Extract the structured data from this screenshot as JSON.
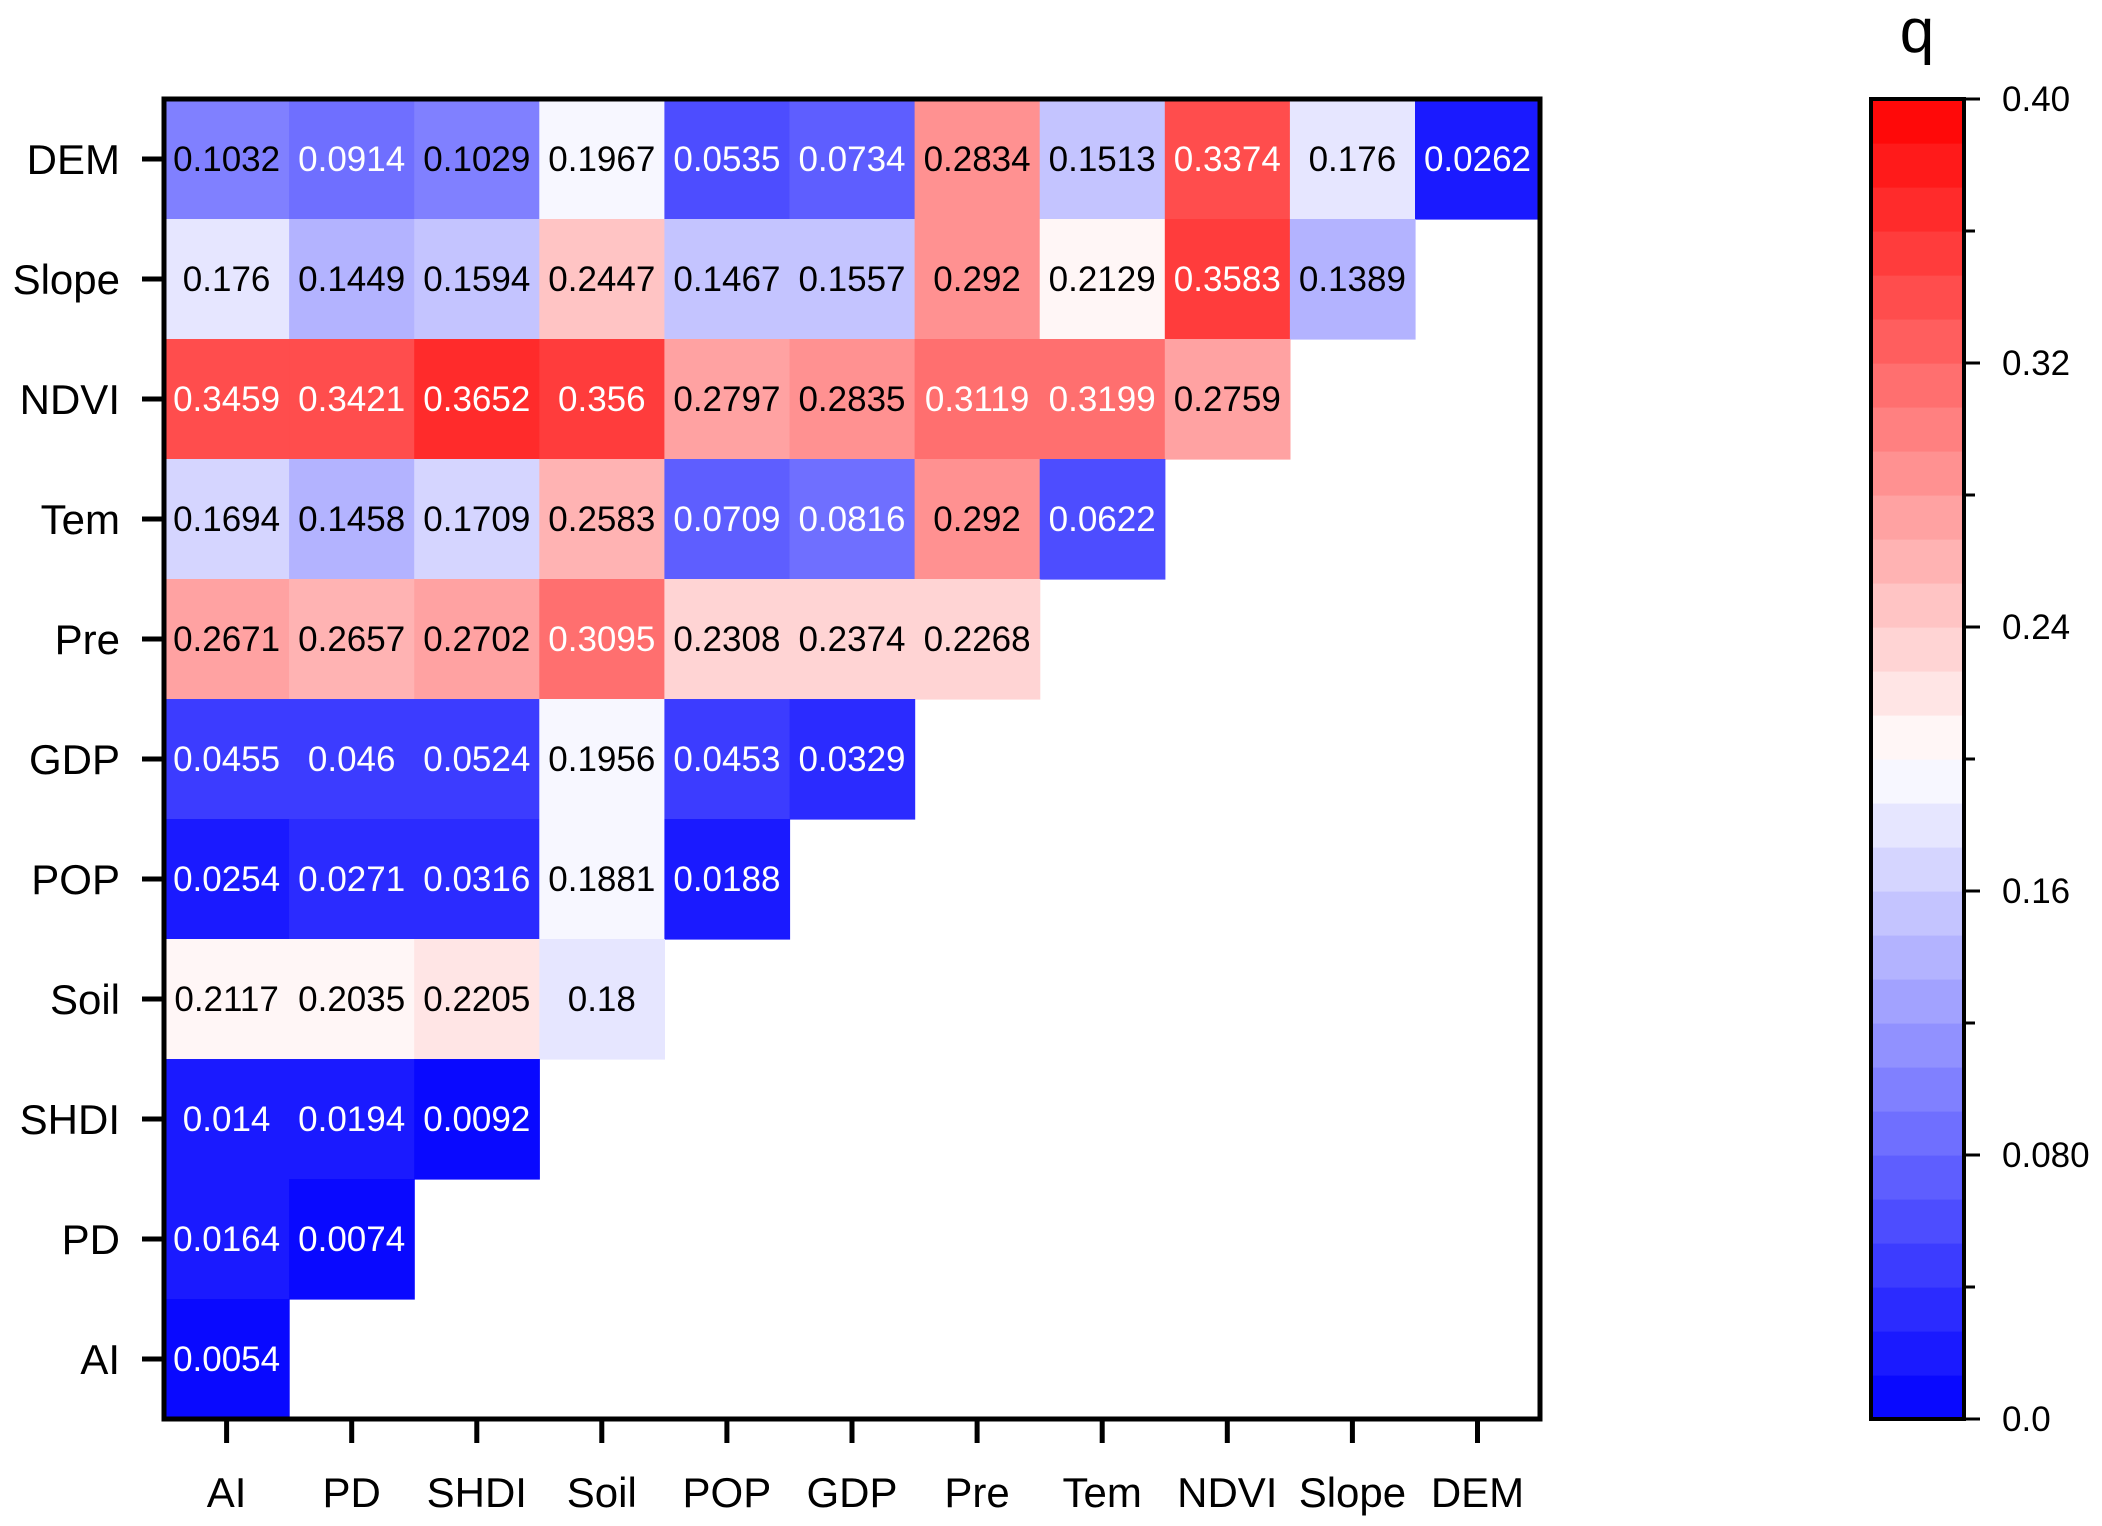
{
  "chart_data": {
    "type": "heatmap",
    "title": "",
    "colorbar_title": "q",
    "x_categories": [
      "AI",
      "PD",
      "SHDI",
      "Soil",
      "POP",
      "GDP",
      "Pre",
      "Tem",
      "NDVI",
      "Slope",
      "DEM"
    ],
    "y_categories": [
      "DEM",
      "Slope",
      "NDVI",
      "Tem",
      "Pre",
      "GDP",
      "POP",
      "Soil",
      "SHDI",
      "PD",
      "AI"
    ],
    "rows": [
      {
        "name": "DEM",
        "values": [
          "0.1032",
          "0.0914",
          "0.1029",
          "0.1967",
          "0.0535",
          "0.0734",
          "0.2834",
          "0.1513",
          "0.3374",
          "0.176",
          "0.0262"
        ]
      },
      {
        "name": "Slope",
        "values": [
          "0.176",
          "0.1449",
          "0.1594",
          "0.2447",
          "0.1467",
          "0.1557",
          "0.292",
          "0.2129",
          "0.3583",
          "0.1389"
        ]
      },
      {
        "name": "NDVI",
        "values": [
          "0.3459",
          "0.3421",
          "0.3652",
          "0.356",
          "0.2797",
          "0.2835",
          "0.3119",
          "0.3199",
          "0.2759"
        ]
      },
      {
        "name": "Tem",
        "values": [
          "0.1694",
          "0.1458",
          "0.1709",
          "0.2583",
          "0.0709",
          "0.0816",
          "0.292",
          "0.0622"
        ]
      },
      {
        "name": "Pre",
        "values": [
          "0.2671",
          "0.2657",
          "0.2702",
          "0.3095",
          "0.2308",
          "0.2374",
          "0.2268"
        ]
      },
      {
        "name": "GDP",
        "values": [
          "0.0455",
          "0.046",
          "0.0524",
          "0.1956",
          "0.0453",
          "0.0329"
        ]
      },
      {
        "name": "POP",
        "values": [
          "0.0254",
          "0.0271",
          "0.0316",
          "0.1881",
          "0.0188"
        ]
      },
      {
        "name": "Soil",
        "values": [
          "0.2117",
          "0.2035",
          "0.2205",
          "0.18"
        ]
      },
      {
        "name": "SHDI",
        "values": [
          "0.014",
          "0.0194",
          "0.0092"
        ]
      },
      {
        "name": "PD",
        "values": [
          "0.0164",
          "0.0074"
        ]
      },
      {
        "name": "AI",
        "values": [
          "0.0054"
        ]
      }
    ],
    "colorbar_range": [
      0.0,
      0.4
    ],
    "colorbar_ticks": [
      "0.0",
      "0.080",
      "0.16",
      "0.24",
      "0.32",
      "0.40"
    ],
    "colorbar_levels": 30,
    "colors": {
      "low": "#0000ff",
      "mid": "#ffffff",
      "high": "#ff0000",
      "axis": "#000000"
    }
  }
}
